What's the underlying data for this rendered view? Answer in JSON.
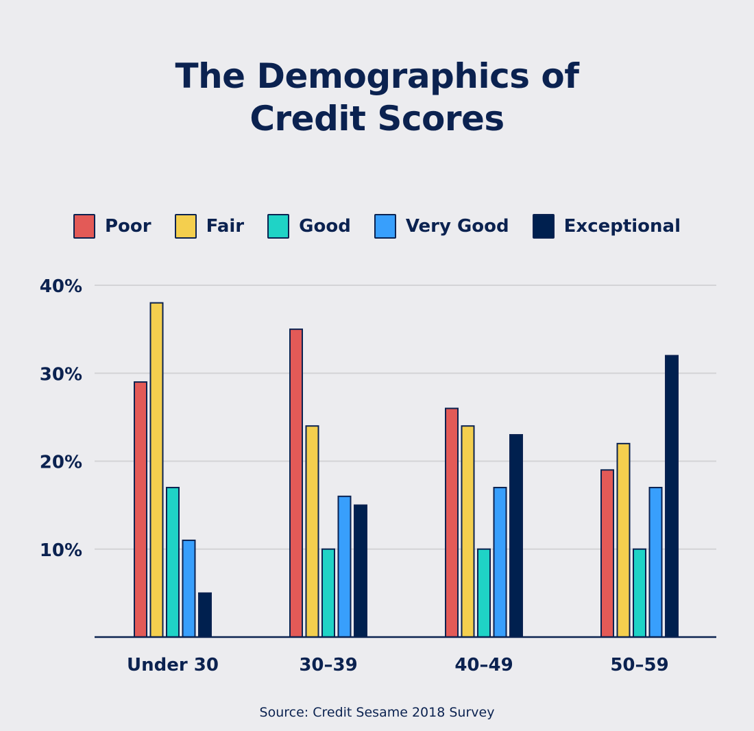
{
  "chart_data": {
    "type": "bar",
    "title_lines": [
      "The Demographics of",
      "Credit Scores"
    ],
    "categories": [
      "Under 30",
      "30–39",
      "40–49",
      "50–59"
    ],
    "series": [
      {
        "name": "Poor",
        "color": "#e35a57",
        "values": [
          29,
          35,
          26,
          19
        ]
      },
      {
        "name": "Fair",
        "color": "#f4cf4e",
        "values": [
          38,
          24,
          24,
          22
        ]
      },
      {
        "name": "Good",
        "color": "#1fd3c6",
        "values": [
          17,
          10,
          10,
          10
        ]
      },
      {
        "name": "Very Good",
        "color": "#389ffc",
        "values": [
          11,
          16,
          17,
          17
        ]
      },
      {
        "name": "Exceptional",
        "color": "#00204f",
        "values": [
          5,
          15,
          23,
          32
        ]
      }
    ],
    "yticks": [
      "10%",
      "20%",
      "30%",
      "40%"
    ],
    "ytick_values": [
      10,
      20,
      30,
      40
    ],
    "ylim": [
      0,
      40
    ],
    "grid": true,
    "legend_position": "top",
    "source": "Source: Credit Sesame 2018 Survey"
  }
}
